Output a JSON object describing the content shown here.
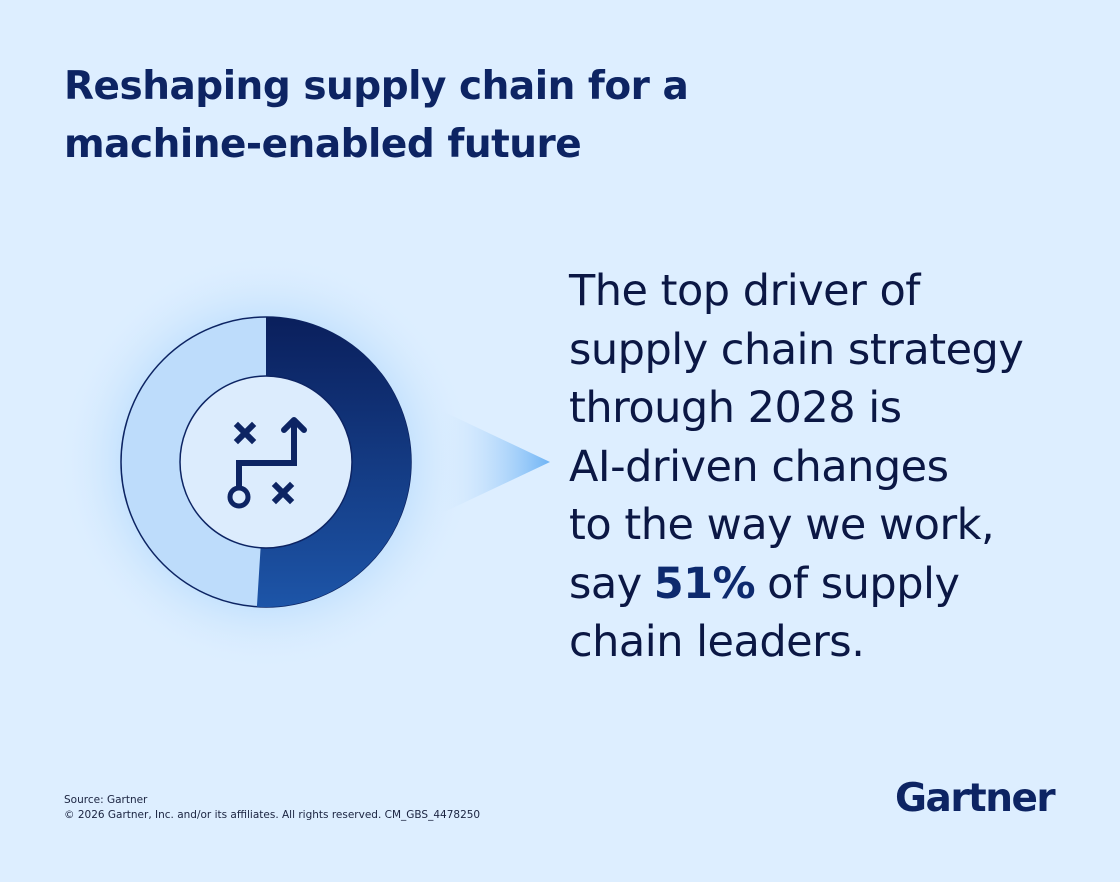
{
  "header": {
    "title_lines": [
      "Reshaping supply chain for a",
      "machine-enabled future"
    ]
  },
  "chart_data": {
    "type": "donut",
    "values": [
      51
    ],
    "value_labels": [
      "51%"
    ],
    "color": "#0d2a6e",
    "track_color": "#bddcfb"
  },
  "statement": {
    "lines": [
      "The top driver of",
      "supply chain strategy",
      "through 2028 is",
      "AI-driven changes",
      "to the way we work,"
    ],
    "lead": "say",
    "tail": "of supply",
    "last_line": "chain leaders."
  },
  "footer": {
    "source": "Source: Gartner",
    "copyright": "© 2026 Gartner, Inc. and/or its affiliates. All rights reserved. CM_GBS_4478250",
    "logo": "Gartner"
  }
}
